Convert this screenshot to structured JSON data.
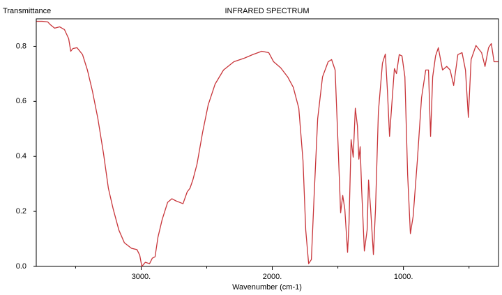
{
  "chart_data": {
    "type": "line",
    "title": "INFRARED SPECTRUM",
    "ylabel": "Transmittance",
    "xlabel": "Wavenumber (cm-1)",
    "color": "#c8353a",
    "xlim": [
      3800,
      275
    ],
    "ylim": [
      0,
      0.9
    ],
    "xticks": [
      {
        "value": 3000,
        "label": "3000."
      },
      {
        "value": 2000,
        "label": "2000."
      },
      {
        "value": 1000,
        "label": "1000."
      }
    ],
    "xminor_ticks": [
      3500,
      2500,
      1500,
      500
    ],
    "yticks": [
      {
        "value": 0,
        "label": "0.0"
      },
      0.2,
      0.4,
      0.6,
      0.8
    ],
    "x": [
      3798,
      3755,
      3713,
      3691,
      3660,
      3622,
      3585,
      3553,
      3537,
      3521,
      3489,
      3447,
      3410,
      3372,
      3330,
      3287,
      3250,
      3213,
      3170,
      3128,
      3074,
      3032,
      3011,
      2995,
      2968,
      2936,
      2915,
      2894,
      2872,
      2840,
      2798,
      2766,
      2734,
      2681,
      2649,
      2628,
      2606,
      2574,
      2532,
      2489,
      2436,
      2372,
      2293,
      2213,
      2149,
      2080,
      2027,
      1990,
      1936,
      1883,
      1840,
      1798,
      1766,
      1745,
      1723,
      1702,
      1681,
      1654,
      1617,
      1574,
      1548,
      1521,
      1500,
      1479,
      1463,
      1447,
      1426,
      1415,
      1399,
      1383,
      1367,
      1351,
      1340,
      1330,
      1319,
      1298,
      1277,
      1266,
      1250,
      1229,
      1213,
      1191,
      1160,
      1138,
      1122,
      1106,
      1085,
      1069,
      1053,
      1032,
      1011,
      989,
      968,
      947,
      926,
      894,
      862,
      830,
      809,
      793,
      777,
      755,
      734,
      702,
      670,
      644,
      617,
      585,
      553,
      527,
      505,
      484,
      447,
      404,
      378,
      351,
      330,
      309,
      277
    ],
    "values": [
      0.891,
      0.891,
      0.889,
      0.878,
      0.866,
      0.871,
      0.861,
      0.828,
      0.782,
      0.792,
      0.795,
      0.77,
      0.714,
      0.638,
      0.537,
      0.41,
      0.284,
      0.208,
      0.132,
      0.086,
      0.066,
      0.061,
      0.041,
      0.0,
      0.015,
      0.01,
      0.03,
      0.035,
      0.106,
      0.17,
      0.233,
      0.246,
      0.238,
      0.228,
      0.271,
      0.284,
      0.314,
      0.372,
      0.486,
      0.587,
      0.663,
      0.714,
      0.744,
      0.757,
      0.77,
      0.782,
      0.777,
      0.744,
      0.722,
      0.689,
      0.651,
      0.575,
      0.385,
      0.132,
      0.01,
      0.025,
      0.258,
      0.537,
      0.689,
      0.744,
      0.752,
      0.714,
      0.461,
      0.195,
      0.258,
      0.208,
      0.051,
      0.157,
      0.461,
      0.397,
      0.575,
      0.511,
      0.39,
      0.435,
      0.284,
      0.056,
      0.132,
      0.314,
      0.208,
      0.043,
      0.208,
      0.562,
      0.739,
      0.772,
      0.638,
      0.473,
      0.613,
      0.719,
      0.701,
      0.77,
      0.765,
      0.689,
      0.334,
      0.119,
      0.182,
      0.385,
      0.613,
      0.714,
      0.714,
      0.473,
      0.689,
      0.765,
      0.795,
      0.714,
      0.727,
      0.714,
      0.658,
      0.77,
      0.777,
      0.714,
      0.542,
      0.752,
      0.803,
      0.777,
      0.727,
      0.795,
      0.81,
      0.744,
      0.744
    ]
  }
}
